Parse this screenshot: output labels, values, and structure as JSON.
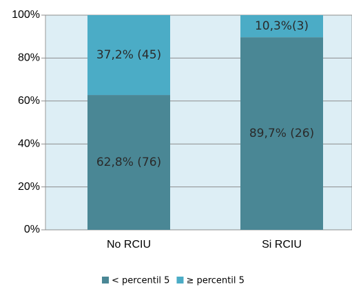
{
  "chart_data": {
    "type": "stacked_bar",
    "categories": [
      "No RCIU",
      "Si RCIU"
    ],
    "series": [
      {
        "name": "< percentil 5",
        "color": "#4a8795",
        "values": [
          62.8,
          89.7
        ],
        "value_labels": [
          "62,8% (76)",
          "89,7% (26)"
        ]
      },
      {
        "name": "≥ percentil 5",
        "color": "#4bacc6",
        "values": [
          37.2,
          10.3
        ],
        "value_labels": [
          "37,2% (45)",
          "10,3%(3)"
        ]
      }
    ],
    "ylim": [
      0,
      100
    ],
    "yticks": [
      {
        "value": 0,
        "label": "0%"
      },
      {
        "value": 20,
        "label": "20%"
      },
      {
        "value": 40,
        "label": "40%"
      },
      {
        "value": 60,
        "label": "60%"
      },
      {
        "value": 80,
        "label": "80%"
      },
      {
        "value": 100,
        "label": "100%"
      }
    ],
    "grid": true,
    "legend": "bottom"
  }
}
